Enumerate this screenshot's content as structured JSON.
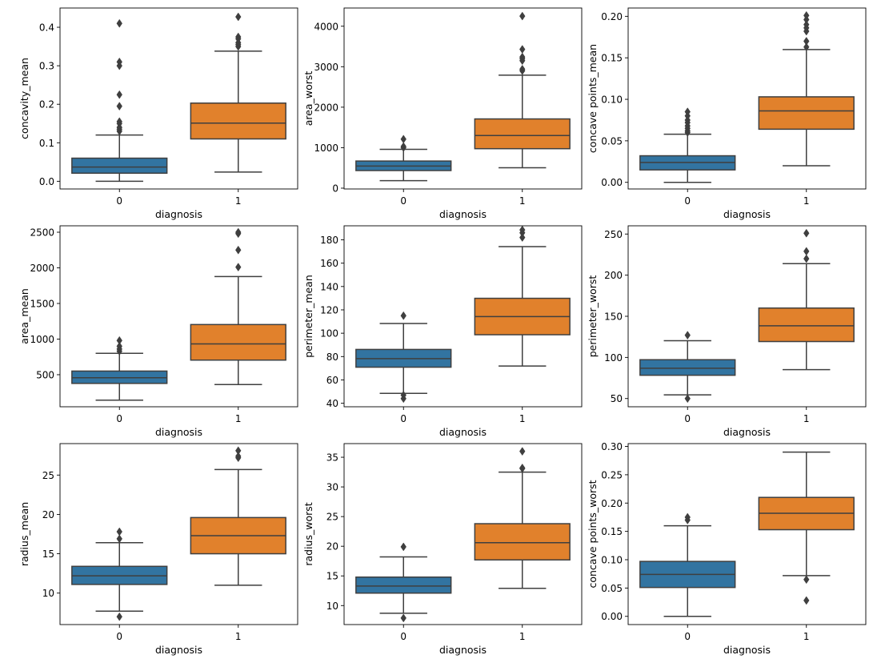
{
  "chart_data": [
    {
      "type": "box",
      "xlabel": "diagnosis",
      "ylabel": "concavity_mean",
      "ylim": [
        -0.02,
        0.45
      ],
      "yticks": [
        0.0,
        0.1,
        0.2,
        0.3,
        0.4
      ],
      "ytick_labels": [
        "0.0",
        "0.1",
        "0.2",
        "0.3",
        "0.4"
      ],
      "categories": [
        "0",
        "1"
      ],
      "boxes": [
        {
          "category": "0",
          "color": "#3274a1",
          "whislo": 0.0,
          "q1": 0.021,
          "med": 0.037,
          "q3": 0.06,
          "whishi": 0.12,
          "fliers": [
            0.13,
            0.135,
            0.14,
            0.15,
            0.155,
            0.195,
            0.225,
            0.3,
            0.31,
            0.41
          ]
        },
        {
          "category": "1",
          "color": "#e1812c",
          "whislo": 0.024,
          "q1": 0.11,
          "med": 0.151,
          "q3": 0.203,
          "whishi": 0.338,
          "fliers": [
            0.35,
            0.355,
            0.36,
            0.37,
            0.375,
            0.427
          ]
        }
      ]
    },
    {
      "type": "box",
      "xlabel": "diagnosis",
      "ylabel": "area_worst",
      "ylim": [
        -20,
        4450
      ],
      "yticks": [
        0,
        1000,
        2000,
        3000,
        4000
      ],
      "ytick_labels": [
        "0",
        "1000",
        "2000",
        "3000",
        "4000"
      ],
      "categories": [
        "0",
        "1"
      ],
      "boxes": [
        {
          "category": "0",
          "color": "#3274a1",
          "whislo": 185,
          "q1": 435,
          "med": 545,
          "q3": 670,
          "whishi": 960,
          "fliers": [
            1000,
            1030,
            1210
          ]
        },
        {
          "category": "1",
          "color": "#e1812c",
          "whislo": 505,
          "q1": 975,
          "med": 1300,
          "q3": 1710,
          "whishi": 2790,
          "fliers": [
            2900,
            2940,
            3150,
            3200,
            3240,
            3430,
            4250
          ]
        }
      ]
    },
    {
      "type": "box",
      "xlabel": "diagnosis",
      "ylabel": "concave points_mean",
      "ylim": [
        -0.008,
        0.21
      ],
      "yticks": [
        0.0,
        0.05,
        0.1,
        0.15,
        0.2
      ],
      "ytick_labels": [
        "0.00",
        "0.05",
        "0.10",
        "0.15",
        "0.20"
      ],
      "categories": [
        "0",
        "1"
      ],
      "boxes": [
        {
          "category": "0",
          "color": "#3274a1",
          "whislo": 0.0,
          "q1": 0.015,
          "med": 0.024,
          "q3": 0.032,
          "whishi": 0.058,
          "fliers": [
            0.06,
            0.062,
            0.065,
            0.068,
            0.072,
            0.075,
            0.08,
            0.085
          ]
        },
        {
          "category": "1",
          "color": "#e1812c",
          "whislo": 0.02,
          "q1": 0.064,
          "med": 0.086,
          "q3": 0.103,
          "whishi": 0.16,
          "fliers": [
            0.163,
            0.17,
            0.182,
            0.186,
            0.19,
            0.196,
            0.201
          ]
        }
      ]
    },
    {
      "type": "box",
      "xlabel": "diagnosis",
      "ylabel": "area_mean",
      "ylim": [
        50,
        2590
      ],
      "yticks": [
        500,
        1000,
        1500,
        2000,
        2500
      ],
      "ytick_labels": [
        "500",
        "1000",
        "1500",
        "2000",
        "2500"
      ],
      "categories": [
        "0",
        "1"
      ],
      "boxes": [
        {
          "category": "0",
          "color": "#3274a1",
          "whislo": 143,
          "q1": 378,
          "med": 458,
          "q3": 551,
          "whishi": 800,
          "fliers": [
            830,
            860,
            900,
            980
          ]
        },
        {
          "category": "1",
          "color": "#e1812c",
          "whislo": 362,
          "q1": 705,
          "med": 932,
          "q3": 1204,
          "whishi": 1878,
          "fliers": [
            2010,
            2250,
            2480,
            2500
          ]
        }
      ]
    },
    {
      "type": "box",
      "xlabel": "diagnosis",
      "ylabel": "perimeter_mean",
      "ylim": [
        37,
        192
      ],
      "yticks": [
        40,
        60,
        80,
        100,
        120,
        140,
        160,
        180
      ],
      "ytick_labels": [
        "40",
        "60",
        "80",
        "100",
        "120",
        "140",
        "160",
        "180"
      ],
      "categories": [
        "0",
        "1"
      ],
      "boxes": [
        {
          "category": "0",
          "color": "#3274a1",
          "whislo": 48.5,
          "q1": 70.9,
          "med": 78.2,
          "q3": 86.1,
          "whishi": 108.3,
          "fliers": [
            44,
            47,
            115
          ]
        },
        {
          "category": "1",
          "color": "#e1812c",
          "whislo": 71.9,
          "q1": 98.7,
          "med": 114.2,
          "q3": 129.9,
          "whishi": 174.2,
          "fliers": [
            182,
            186,
            188.5
          ]
        }
      ]
    },
    {
      "type": "box",
      "xlabel": "diagnosis",
      "ylabel": "perimeter_worst",
      "ylim": [
        40,
        260
      ],
      "yticks": [
        50,
        100,
        150,
        200,
        250
      ],
      "ytick_labels": [
        "50",
        "100",
        "150",
        "200",
        "250"
      ],
      "categories": [
        "0",
        "1"
      ],
      "boxes": [
        {
          "category": "0",
          "color": "#3274a1",
          "whislo": 54.5,
          "q1": 78.3,
          "med": 86.9,
          "q3": 97.2,
          "whishi": 120.3,
          "fliers": [
            50,
            127
          ]
        },
        {
          "category": "1",
          "color": "#e1812c",
          "whislo": 85.1,
          "q1": 119.3,
          "med": 138.5,
          "q3": 160,
          "whishi": 214,
          "fliers": [
            220,
            229,
            251
          ]
        }
      ]
    },
    {
      "type": "box",
      "xlabel": "diagnosis",
      "ylabel": "radius_mean",
      "ylim": [
        6.0,
        29.0
      ],
      "yticks": [
        10,
        15,
        20,
        25
      ],
      "ytick_labels": [
        "10",
        "15",
        "20",
        "25"
      ],
      "categories": [
        "0",
        "1"
      ],
      "boxes": [
        {
          "category": "0",
          "color": "#3274a1",
          "whislo": 7.7,
          "q1": 11.1,
          "med": 12.2,
          "q3": 13.4,
          "whishi": 16.4,
          "fliers": [
            7.0,
            16.9,
            17.8
          ]
        },
        {
          "category": "1",
          "color": "#e1812c",
          "whislo": 11.0,
          "q1": 15.0,
          "med": 17.3,
          "q3": 19.6,
          "whishi": 25.7,
          "fliers": [
            27.2,
            27.4,
            28.1
          ]
        }
      ]
    },
    {
      "type": "box",
      "xlabel": "diagnosis",
      "ylabel": "radius_worst",
      "ylim": [
        6.8,
        37.3
      ],
      "yticks": [
        10,
        15,
        20,
        25,
        30,
        35
      ],
      "ytick_labels": [
        "10",
        "15",
        "20",
        "25",
        "30",
        "35"
      ],
      "categories": [
        "0",
        "1"
      ],
      "boxes": [
        {
          "category": "0",
          "color": "#3274a1",
          "whislo": 8.7,
          "q1": 12.1,
          "med": 13.3,
          "q3": 14.8,
          "whishi": 18.2,
          "fliers": [
            7.9,
            19.9
          ]
        },
        {
          "category": "1",
          "color": "#e1812c",
          "whislo": 12.9,
          "q1": 17.7,
          "med": 20.6,
          "q3": 23.8,
          "whishi": 32.5,
          "fliers": [
            33.1,
            33.2,
            36.0
          ]
        }
      ]
    },
    {
      "type": "box",
      "xlabel": "diagnosis",
      "ylabel": "concave points_worst",
      "ylim": [
        -0.0145,
        0.305
      ],
      "yticks": [
        0.0,
        0.05,
        0.1,
        0.15,
        0.2,
        0.25,
        0.3
      ],
      "ytick_labels": [
        "0.00",
        "0.05",
        "0.10",
        "0.15",
        "0.20",
        "0.25",
        "0.30"
      ],
      "categories": [
        "0",
        "1"
      ],
      "boxes": [
        {
          "category": "0",
          "color": "#3274a1",
          "whislo": 0.0,
          "q1": 0.051,
          "med": 0.074,
          "q3": 0.097,
          "whishi": 0.16,
          "fliers": [
            0.17,
            0.175
          ]
        },
        {
          "category": "1",
          "color": "#e1812c",
          "whislo": 0.072,
          "q1": 0.153,
          "med": 0.182,
          "q3": 0.21,
          "whishi": 0.29,
          "fliers": [
            0.028,
            0.065
          ]
        }
      ]
    }
  ]
}
